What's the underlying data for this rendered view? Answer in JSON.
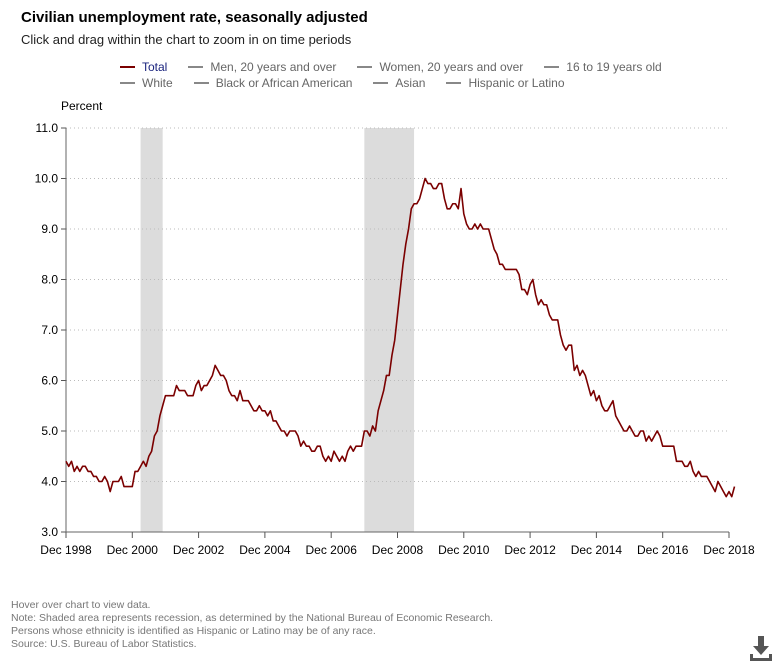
{
  "header": {
    "title": "Civilian unemployment rate, seasonally adjusted",
    "subtitle": "Click and drag within the chart to zoom in on time periods"
  },
  "legend": {
    "row1": [
      {
        "label": "Total",
        "color": "#7b0000",
        "active": true
      },
      {
        "label": "Men, 20 years and over",
        "color": "#888888",
        "active": false
      },
      {
        "label": "Women, 20 years and over",
        "color": "#888888",
        "active": false
      },
      {
        "label": "16 to 19 years old",
        "color": "#888888",
        "active": false
      }
    ],
    "row2": [
      {
        "label": "White",
        "color": "#888888",
        "active": false
      },
      {
        "label": "Black or African American",
        "color": "#888888",
        "active": false
      },
      {
        "label": "Asian",
        "color": "#888888",
        "active": false
      },
      {
        "label": "Hispanic or Latino",
        "color": "#888888",
        "active": false
      }
    ]
  },
  "chart_data": {
    "type": "line",
    "ylabel": "Percent",
    "ylim": [
      3.0,
      11.0
    ],
    "yticks": [
      "3.0",
      "4.0",
      "5.0",
      "6.0",
      "7.0",
      "8.0",
      "9.0",
      "10.0",
      "11.0"
    ],
    "xlim": [
      1998.917,
      2018.917
    ],
    "xticks": [
      "Dec 1998",
      "Dec 2000",
      "Dec 2002",
      "Dec 2004",
      "Dec 2006",
      "Dec 2008",
      "Dec 2010",
      "Dec 2012",
      "Dec 2014",
      "Dec 2016",
      "Dec 2018"
    ],
    "grid": "horizontal dotted",
    "line_color": "#7b0000",
    "recession_color": "#dcdcdc",
    "recessions": [
      {
        "start": "Mar 2001",
        "end": "Nov 2001"
      },
      {
        "start": "Dec 2007",
        "end": "Jun 2009"
      }
    ],
    "series": [
      {
        "name": "Total",
        "start": "Dec 1998",
        "frequency": "monthly",
        "values": [
          4.4,
          4.3,
          4.4,
          4.2,
          4.3,
          4.2,
          4.3,
          4.3,
          4.2,
          4.2,
          4.1,
          4.1,
          4.0,
          4.0,
          4.1,
          4.0,
          3.8,
          4.0,
          4.0,
          4.0,
          4.1,
          3.9,
          3.9,
          3.9,
          3.9,
          4.2,
          4.2,
          4.3,
          4.4,
          4.3,
          4.5,
          4.6,
          4.9,
          5.0,
          5.3,
          5.5,
          5.7,
          5.7,
          5.7,
          5.7,
          5.9,
          5.8,
          5.8,
          5.8,
          5.7,
          5.7,
          5.7,
          5.9,
          6.0,
          5.8,
          5.9,
          5.9,
          6.0,
          6.1,
          6.3,
          6.2,
          6.1,
          6.1,
          6.0,
          5.8,
          5.7,
          5.7,
          5.6,
          5.8,
          5.6,
          5.6,
          5.6,
          5.5,
          5.4,
          5.4,
          5.5,
          5.4,
          5.4,
          5.3,
          5.4,
          5.2,
          5.2,
          5.1,
          5.0,
          5.0,
          4.9,
          5.0,
          5.0,
          5.0,
          4.9,
          4.7,
          4.8,
          4.7,
          4.7,
          4.6,
          4.6,
          4.7,
          4.7,
          4.5,
          4.4,
          4.5,
          4.4,
          4.6,
          4.5,
          4.4,
          4.5,
          4.4,
          4.6,
          4.7,
          4.6,
          4.7,
          4.7,
          4.7,
          5.0,
          5.0,
          4.9,
          5.1,
          5.0,
          5.4,
          5.6,
          5.8,
          6.1,
          6.1,
          6.5,
          6.8,
          7.3,
          7.8,
          8.3,
          8.7,
          9.0,
          9.4,
          9.5,
          9.5,
          9.6,
          9.8,
          10.0,
          9.9,
          9.9,
          9.8,
          9.8,
          9.9,
          9.9,
          9.6,
          9.4,
          9.4,
          9.5,
          9.5,
          9.4,
          9.8,
          9.3,
          9.1,
          9.0,
          9.0,
          9.1,
          9.0,
          9.1,
          9.0,
          9.0,
          9.0,
          8.8,
          8.6,
          8.5,
          8.3,
          8.3,
          8.2,
          8.2,
          8.2,
          8.2,
          8.2,
          8.1,
          7.8,
          7.8,
          7.7,
          7.9,
          8.0,
          7.7,
          7.5,
          7.6,
          7.5,
          7.5,
          7.3,
          7.2,
          7.2,
          7.2,
          6.9,
          6.7,
          6.6,
          6.7,
          6.7,
          6.2,
          6.3,
          6.1,
          6.2,
          6.1,
          5.9,
          5.7,
          5.8,
          5.6,
          5.7,
          5.5,
          5.4,
          5.4,
          5.5,
          5.6,
          5.3,
          5.2,
          5.1,
          5.0,
          5.0,
          5.1,
          5.0,
          4.9,
          4.9,
          5.0,
          5.0,
          4.8,
          4.9,
          4.8,
          4.9,
          5.0,
          4.9,
          4.7,
          4.7,
          4.7,
          4.7,
          4.7,
          4.4,
          4.4,
          4.4,
          4.3,
          4.3,
          4.4,
          4.2,
          4.1,
          4.2,
          4.1,
          4.1,
          4.1,
          4.0,
          3.9,
          3.8,
          4.0,
          3.9,
          3.8,
          3.7,
          3.8,
          3.7,
          3.9
        ]
      }
    ]
  },
  "notes": [
    "Hover over chart to view data.",
    "Note: Shaded area represents recession, as determined by the National Bureau of Economic Research.",
    "Persons whose ethnicity is identified as Hispanic or Latino may be of any race.",
    "Source: U.S. Bureau of Labor Statistics."
  ],
  "icons": {
    "download": "download-icon"
  }
}
